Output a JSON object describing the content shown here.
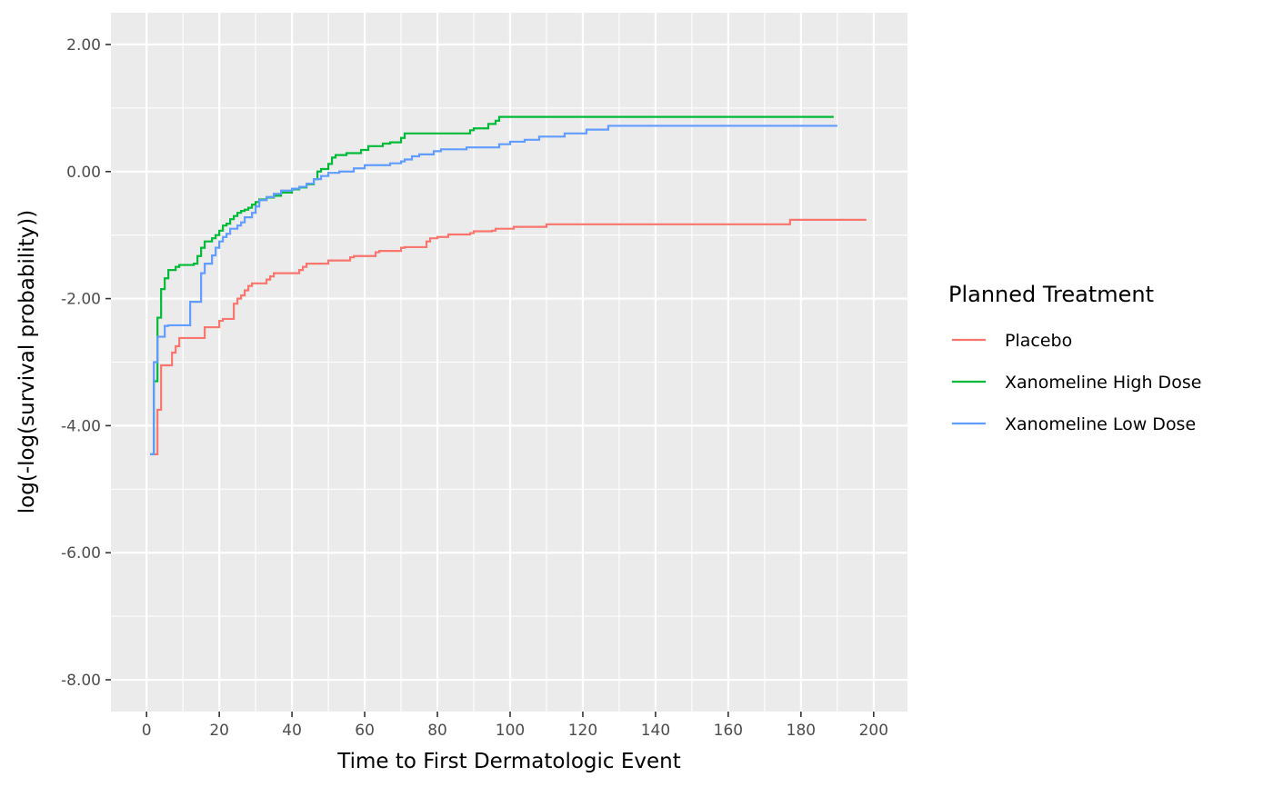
{
  "chart_data": {
    "type": "line",
    "step": true,
    "title": "",
    "xlabel": "Time to First Dermatologic Event",
    "ylabel": "log(-log(survival probability))",
    "xlim": [
      -9.8,
      209.3
    ],
    "ylim": [
      -8.5,
      2.5
    ],
    "x_ticks": [
      0,
      20,
      40,
      60,
      80,
      100,
      120,
      140,
      160,
      180,
      200
    ],
    "x_tick_labels": [
      "0",
      "20",
      "40",
      "60",
      "80",
      "100",
      "120",
      "140",
      "160",
      "180",
      "200"
    ],
    "y_ticks": [
      -8,
      -6,
      -4,
      -2,
      0,
      2
    ],
    "y_tick_labels": [
      "-8.00",
      "-6.00",
      "-4.00",
      "-2.00",
      "0.00",
      "2.00"
    ],
    "grid": true,
    "background": "#ebebeb",
    "legend": {
      "title": "Planned Treatment",
      "position": "right"
    },
    "series": [
      {
        "name": "Placebo",
        "color": "#F8766D",
        "x": [
          1,
          2,
          3,
          4,
          7,
          8,
          9,
          16,
          17,
          20,
          21,
          24,
          25,
          26,
          27,
          28,
          29,
          33,
          34,
          35,
          42,
          43,
          44,
          48,
          50,
          56,
          57,
          63,
          64,
          70,
          71,
          77,
          78,
          80,
          83,
          89,
          90,
          95,
          96,
          101,
          110,
          177,
          198
        ],
        "y": [
          -4.45,
          -4.45,
          -3.75,
          -3.05,
          -2.85,
          -2.75,
          -2.62,
          -2.45,
          -2.45,
          -2.35,
          -2.32,
          -2.08,
          -2.0,
          -1.95,
          -1.87,
          -1.8,
          -1.76,
          -1.7,
          -1.65,
          -1.6,
          -1.55,
          -1.5,
          -1.45,
          -1.45,
          -1.4,
          -1.35,
          -1.33,
          -1.27,
          -1.25,
          -1.2,
          -1.19,
          -1.1,
          -1.05,
          -1.03,
          -0.99,
          -0.97,
          -0.94,
          -0.93,
          -0.9,
          -0.87,
          -0.83,
          -0.76,
          -0.76
        ]
      },
      {
        "name": "Xanomeline High Dose",
        "color": "#00BA38",
        "x": [
          1,
          2,
          3,
          4,
          5,
          6,
          8,
          9,
          13,
          14,
          15,
          16,
          18,
          19,
          20,
          21,
          22,
          23,
          24,
          25,
          26,
          27,
          28,
          29,
          30,
          31,
          33,
          35,
          37,
          40,
          42,
          44,
          46,
          47,
          48,
          50,
          51,
          52,
          55,
          59,
          61,
          65,
          67,
          70,
          71,
          80,
          89,
          90,
          94,
          96,
          97,
          189
        ],
        "y": [
          -4.45,
          -3.3,
          -2.3,
          -1.85,
          -1.68,
          -1.55,
          -1.5,
          -1.47,
          -1.45,
          -1.33,
          -1.2,
          -1.1,
          -1.05,
          -1.0,
          -0.93,
          -0.85,
          -0.82,
          -0.75,
          -0.7,
          -0.65,
          -0.62,
          -0.6,
          -0.57,
          -0.52,
          -0.48,
          -0.44,
          -0.41,
          -0.38,
          -0.33,
          -0.28,
          -0.25,
          -0.2,
          -0.12,
          0.0,
          0.04,
          0.12,
          0.22,
          0.26,
          0.29,
          0.34,
          0.4,
          0.44,
          0.46,
          0.53,
          0.6,
          0.6,
          0.65,
          0.68,
          0.75,
          0.8,
          0.86,
          0.86
        ]
      },
      {
        "name": "Xanomeline Low Dose",
        "color": "#619CFF",
        "x": [
          1,
          2,
          3,
          5,
          6,
          8,
          12,
          15,
          16,
          18,
          19,
          20,
          21,
          22,
          23,
          25,
          26,
          27,
          29,
          30,
          31,
          33,
          35,
          37,
          40,
          42,
          44,
          46,
          48,
          50,
          53,
          57,
          60,
          67,
          70,
          71,
          73,
          75,
          79,
          81,
          88,
          97,
          100,
          104,
          108,
          115,
          121,
          127,
          190
        ],
        "y": [
          -4.45,
          -3.0,
          -2.6,
          -2.43,
          -2.42,
          -2.42,
          -2.05,
          -1.6,
          -1.45,
          -1.32,
          -1.2,
          -1.1,
          -1.03,
          -0.98,
          -0.9,
          -0.85,
          -0.8,
          -0.72,
          -0.65,
          -0.55,
          -0.45,
          -0.4,
          -0.35,
          -0.3,
          -0.27,
          -0.24,
          -0.19,
          -0.12,
          -0.07,
          -0.02,
          0.0,
          0.05,
          0.1,
          0.13,
          0.16,
          0.19,
          0.24,
          0.27,
          0.32,
          0.35,
          0.38,
          0.43,
          0.47,
          0.5,
          0.55,
          0.6,
          0.66,
          0.72,
          0.72
        ]
      }
    ]
  }
}
